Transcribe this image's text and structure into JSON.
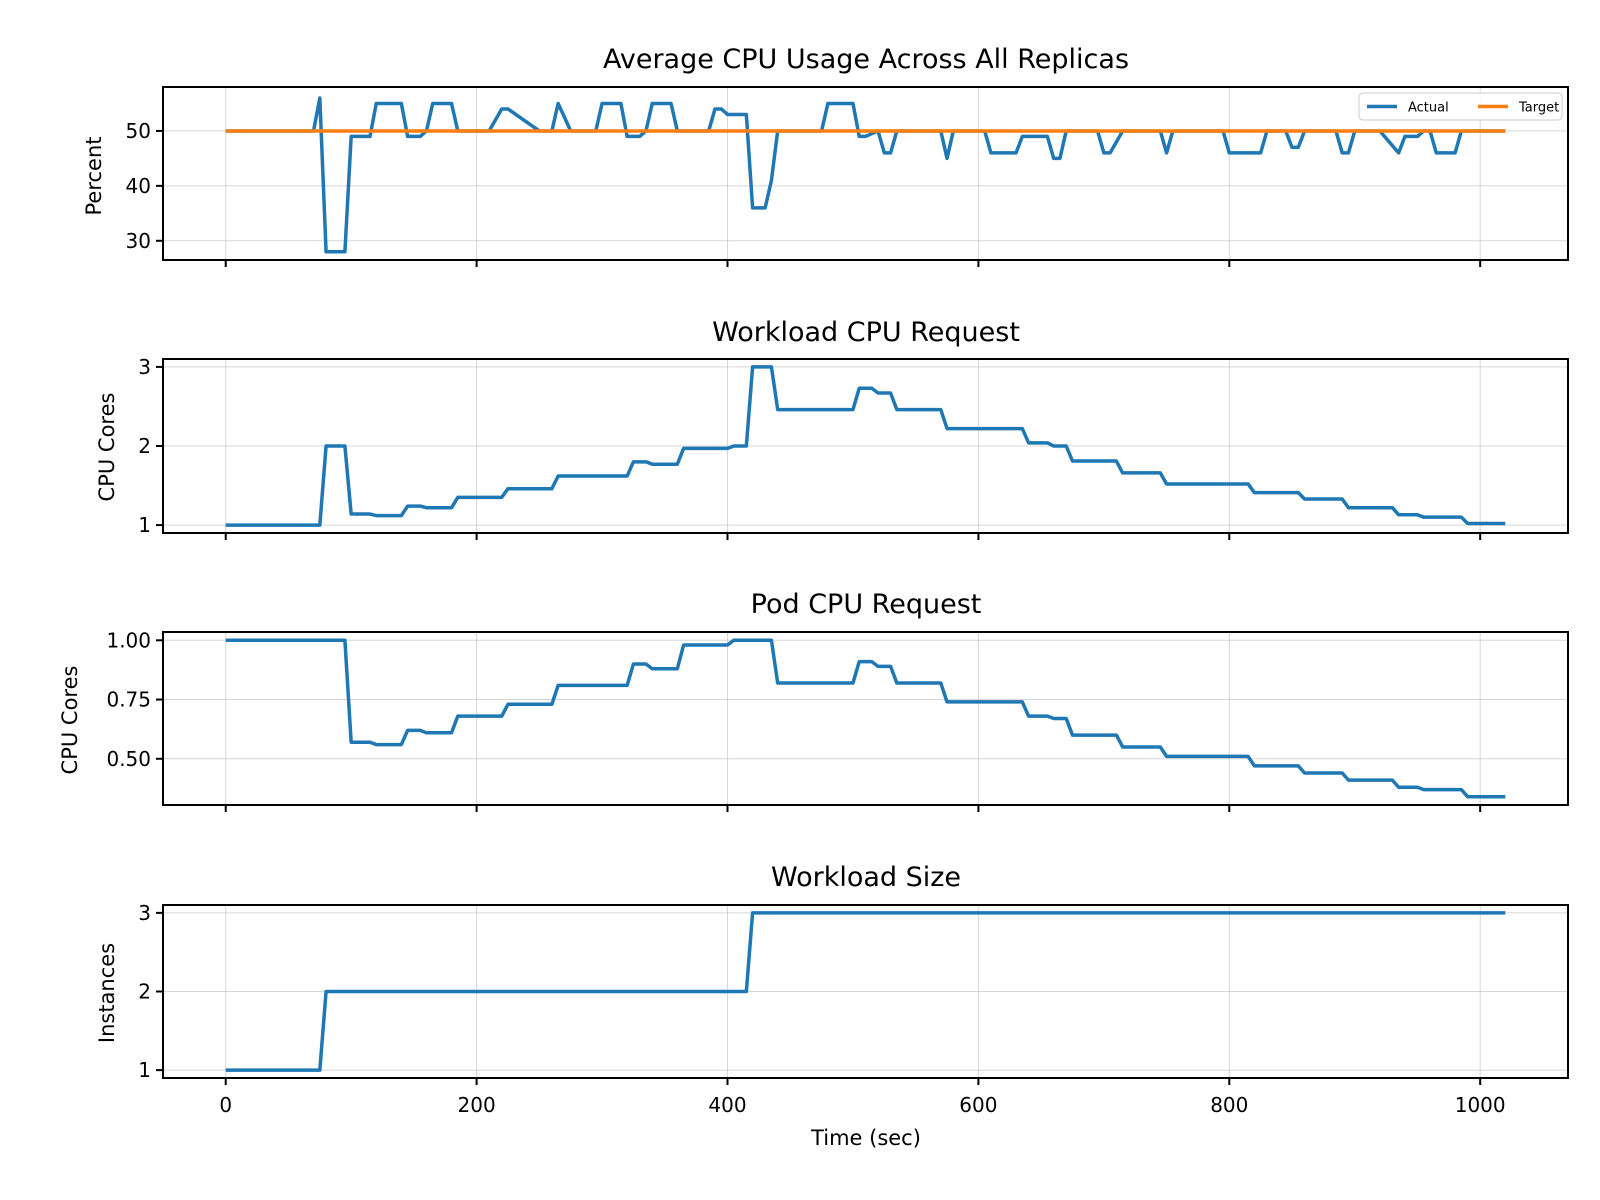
{
  "chart_data": [
    {
      "type": "line",
      "title": "Average CPU Usage Across All Replicas",
      "ylabel": "Percent",
      "xlabel": "",
      "xlim": [
        -50,
        1070
      ],
      "ylim": [
        26.5,
        58
      ],
      "xticks": [
        0,
        200,
        400,
        600,
        800,
        1000
      ],
      "yticks": [
        30,
        40,
        50
      ],
      "ytick_labels": [
        "30",
        "40",
        "50"
      ],
      "show_xtick_labels": false,
      "grid": true,
      "legend": {
        "placement": "top-right",
        "entries": [
          "Actual",
          "Target"
        ],
        "ncol": 2
      },
      "series": [
        {
          "name": "Actual",
          "color": "#1f77b4",
          "x": [
            0,
            70,
            75,
            80,
            95,
            100,
            115,
            120,
            140,
            145,
            155,
            160,
            165,
            180,
            185,
            200,
            205,
            210,
            220,
            225,
            250,
            255,
            260,
            265,
            275,
            290,
            295,
            300,
            315,
            320,
            330,
            335,
            340,
            355,
            360,
            365,
            370,
            385,
            390,
            395,
            400,
            405,
            415,
            420,
            430,
            435,
            440,
            470,
            475,
            480,
            500,
            505,
            510,
            520,
            525,
            530,
            535,
            545,
            550,
            570,
            575,
            580,
            585,
            590,
            605,
            610,
            615,
            630,
            635,
            640,
            655,
            660,
            665,
            670,
            675,
            690,
            695,
            700,
            705,
            715,
            720,
            725,
            745,
            750,
            755,
            760,
            765,
            775,
            790,
            795,
            800,
            805,
            825,
            830,
            835,
            845,
            850,
            855,
            860,
            870,
            875,
            885,
            890,
            895,
            900,
            905,
            915,
            920,
            935,
            940,
            945,
            950,
            955,
            960,
            965,
            975,
            980,
            985,
            990,
            1000,
            1005,
            1010,
            1020
          ],
          "y": [
            50,
            50,
            56,
            28,
            28,
            49,
            49,
            55,
            55,
            49,
            49,
            50,
            55,
            55,
            50,
            50,
            50,
            50,
            54,
            54,
            50,
            50,
            50,
            55,
            50,
            50,
            50,
            55,
            55,
            49,
            49,
            50,
            55,
            55,
            50,
            50,
            50,
            50,
            54,
            54,
            53,
            53,
            53,
            36,
            36,
            41,
            50,
            50,
            50,
            55,
            55,
            49,
            49,
            50,
            46,
            46,
            50,
            50,
            50,
            50,
            45,
            50,
            50,
            50,
            50,
            46,
            46,
            46,
            49,
            49,
            49,
            45,
            45,
            50,
            50,
            50,
            50,
            46,
            46,
            50,
            50,
            50,
            50,
            46,
            50,
            50,
            50,
            50,
            50,
            50,
            46,
            46,
            46,
            50,
            50,
            50,
            47,
            47,
            50,
            50,
            50,
            50,
            46,
            46,
            50,
            50,
            50,
            50,
            46,
            49,
            49,
            49,
            50,
            50,
            46,
            46,
            46,
            50,
            50,
            50,
            50,
            50,
            50
          ]
        },
        {
          "name": "Target",
          "color": "#ff7f0e",
          "x": [
            0,
            1020
          ],
          "y": [
            50,
            50
          ]
        }
      ]
    },
    {
      "type": "line",
      "title": "Workload CPU Request",
      "ylabel": "CPU Cores",
      "xlabel": "",
      "xlim": [
        -50,
        1070
      ],
      "ylim": [
        0.9,
        3.1
      ],
      "xticks": [
        0,
        200,
        400,
        600,
        800,
        1000
      ],
      "yticks": [
        1,
        2,
        3
      ],
      "ytick_labels": [
        "1",
        "2",
        "3"
      ],
      "show_xtick_labels": false,
      "grid": true,
      "series": [
        {
          "color": "#1f77b4",
          "x": [
            0,
            75,
            80,
            95,
            100,
            115,
            120,
            140,
            145,
            155,
            160,
            180,
            185,
            220,
            225,
            260,
            265,
            320,
            325,
            335,
            340,
            360,
            365,
            400,
            405,
            415,
            420,
            435,
            440,
            500,
            505,
            515,
            520,
            530,
            535,
            570,
            575,
            635,
            640,
            655,
            660,
            670,
            675,
            710,
            715,
            745,
            750,
            815,
            820,
            855,
            860,
            890,
            895,
            930,
            935,
            950,
            955,
            985,
            990,
            1020
          ],
          "y": [
            1,
            1,
            2,
            2,
            1.14,
            1.14,
            1.12,
            1.12,
            1.24,
            1.24,
            1.22,
            1.22,
            1.35,
            1.35,
            1.46,
            1.46,
            1.62,
            1.62,
            1.8,
            1.8,
            1.77,
            1.77,
            1.97,
            1.97,
            2.0,
            2.0,
            3.0,
            3.0,
            2.46,
            2.46,
            2.73,
            2.73,
            2.67,
            2.67,
            2.46,
            2.46,
            2.22,
            2.22,
            2.04,
            2.04,
            2.0,
            2.0,
            1.81,
            1.81,
            1.66,
            1.66,
            1.52,
            1.52,
            1.41,
            1.41,
            1.33,
            1.33,
            1.22,
            1.22,
            1.13,
            1.13,
            1.1,
            1.1,
            1.02,
            1.02
          ]
        }
      ]
    },
    {
      "type": "line",
      "title": "Pod CPU Request",
      "ylabel": "CPU Cores",
      "xlabel": "",
      "xlim": [
        -50,
        1070
      ],
      "ylim": [
        0.305,
        1.035
      ],
      "xticks": [
        0,
        200,
        400,
        600,
        800,
        1000
      ],
      "yticks": [
        0.5,
        0.75,
        1.0
      ],
      "ytick_labels": [
        "0.50",
        "0.75",
        "1.00"
      ],
      "show_xtick_labels": false,
      "grid": true,
      "series": [
        {
          "color": "#1f77b4",
          "x": [
            0,
            95,
            100,
            115,
            120,
            140,
            145,
            155,
            160,
            180,
            185,
            220,
            225,
            260,
            265,
            320,
            325,
            335,
            340,
            360,
            365,
            400,
            405,
            435,
            440,
            500,
            505,
            515,
            520,
            530,
            535,
            570,
            575,
            635,
            640,
            655,
            660,
            670,
            675,
            710,
            715,
            745,
            750,
            815,
            820,
            855,
            860,
            890,
            895,
            930,
            935,
            950,
            955,
            985,
            990,
            1020
          ],
          "y": [
            1,
            1,
            0.57,
            0.57,
            0.56,
            0.56,
            0.62,
            0.62,
            0.61,
            0.61,
            0.68,
            0.68,
            0.73,
            0.73,
            0.81,
            0.81,
            0.9,
            0.9,
            0.88,
            0.88,
            0.98,
            0.98,
            1.0,
            1.0,
            0.82,
            0.82,
            0.91,
            0.91,
            0.89,
            0.89,
            0.82,
            0.82,
            0.74,
            0.74,
            0.68,
            0.68,
            0.67,
            0.67,
            0.6,
            0.6,
            0.55,
            0.55,
            0.51,
            0.51,
            0.47,
            0.47,
            0.44,
            0.44,
            0.41,
            0.41,
            0.38,
            0.38,
            0.37,
            0.37,
            0.34,
            0.34
          ]
        }
      ]
    },
    {
      "type": "line",
      "title": "Workload Size",
      "ylabel": "Instances",
      "xlabel": "Time (sec)",
      "xlim": [
        -50,
        1070
      ],
      "ylim": [
        0.9,
        3.1
      ],
      "xticks": [
        0,
        200,
        400,
        600,
        800,
        1000
      ],
      "xtick_labels": [
        "0",
        "200",
        "400",
        "600",
        "800",
        "1000"
      ],
      "yticks": [
        1,
        2,
        3
      ],
      "ytick_labels": [
        "1",
        "2",
        "3"
      ],
      "show_xtick_labels": true,
      "grid": true,
      "series": [
        {
          "color": "#1f77b4",
          "x": [
            0,
            75,
            80,
            415,
            420,
            1020
          ],
          "y": [
            1,
            1,
            2,
            2,
            3,
            3
          ]
        }
      ]
    }
  ]
}
